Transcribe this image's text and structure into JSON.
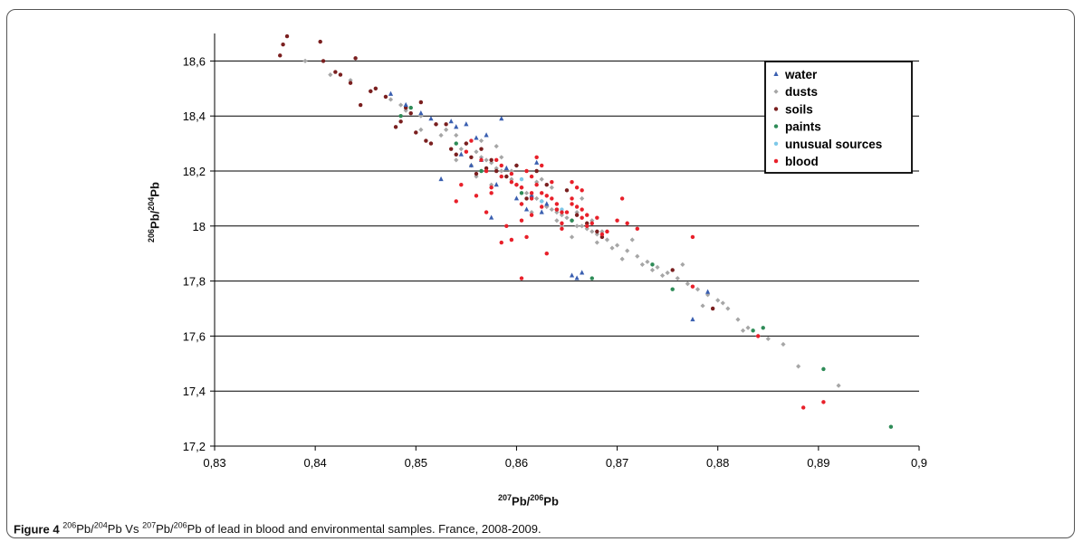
{
  "caption": {
    "figure_label": "Figure 4",
    "text_html": "<sup>206</sup>Pb/<sup>204</sup>Pb Vs <sup>207</sup>Pb/<sup>206</sup>Pb of lead in blood and environmental samples. France, 2008-2009."
  },
  "chart_data": {
    "type": "scatter",
    "xlabel_html": "<sup>207</sup>Pb/<sup>206</sup>Pb",
    "ylabel_html": "<sup>206</sup>Pb/<sup>204</sup>Pb",
    "xlim": [
      0.83,
      0.9
    ],
    "ylim": [
      17.2,
      18.7
    ],
    "x_ticks": [
      0.83,
      0.84,
      0.85,
      0.86,
      0.87,
      0.88,
      0.89,
      0.9
    ],
    "x_tick_labels": [
      "0,83",
      "0,84",
      "0,85",
      "0,86",
      "0,87",
      "0,88",
      "0,89",
      "0,9"
    ],
    "y_ticks": [
      17.2,
      17.4,
      17.6,
      17.8,
      18.0,
      18.2,
      18.4,
      18.6
    ],
    "y_tick_labels": [
      "17,2",
      "17,4",
      "17,6",
      "17,8",
      "18",
      "18,2",
      "18,4",
      "18,6"
    ],
    "grid": "horizontal",
    "legend_position": "top-right",
    "series": [
      {
        "name": "water",
        "marker": "triangle",
        "color": "#3a5fb0",
        "x": [
          0.8475,
          0.849,
          0.8505,
          0.8515,
          0.8525,
          0.8535,
          0.854,
          0.8545,
          0.855,
          0.8555,
          0.856,
          0.8565,
          0.857,
          0.8575,
          0.858,
          0.8585,
          0.859,
          0.86,
          0.861,
          0.8615,
          0.862,
          0.8625,
          0.863,
          0.8655,
          0.866,
          0.8665,
          0.8775,
          0.879
        ],
        "y": [
          18.48,
          18.44,
          18.41,
          18.39,
          18.17,
          18.38,
          18.36,
          18.26,
          18.37,
          18.22,
          18.32,
          18.24,
          18.33,
          18.03,
          18.15,
          18.39,
          18.21,
          18.1,
          18.06,
          18.11,
          18.23,
          18.05,
          18.08,
          17.82,
          17.81,
          17.83,
          17.66,
          17.76
        ]
      },
      {
        "name": "dusts",
        "marker": "diamond",
        "color": "#a6a6a6",
        "x": [
          0.839,
          0.8415,
          0.8435,
          0.8455,
          0.8475,
          0.849,
          0.8505,
          0.852,
          0.853,
          0.854,
          0.855,
          0.856,
          0.8565,
          0.857,
          0.8575,
          0.858,
          0.8585,
          0.859,
          0.8595,
          0.86,
          0.8605,
          0.861,
          0.8615,
          0.862,
          0.8625,
          0.863,
          0.8635,
          0.864,
          0.8645,
          0.865,
          0.8655,
          0.866,
          0.8665,
          0.867,
          0.8675,
          0.868,
          0.869,
          0.87,
          0.871,
          0.872,
          0.873,
          0.874,
          0.875,
          0.876,
          0.877,
          0.878,
          0.879,
          0.88,
          0.881,
          0.882,
          0.883,
          0.884,
          0.885,
          0.8865,
          0.888,
          0.892,
          0.8555,
          0.8575,
          0.8595,
          0.8615,
          0.8635,
          0.8655,
          0.8675,
          0.8695,
          0.8715,
          0.8735,
          0.8565,
          0.8585,
          0.8605,
          0.8625,
          0.8645,
          0.8665,
          0.8685,
          0.8545,
          0.8525,
          0.8505,
          0.8485,
          0.8705,
          0.8725,
          0.8745,
          0.8765,
          0.8785,
          0.8805,
          0.8825,
          0.862,
          0.864,
          0.866,
          0.868,
          0.86,
          0.858,
          0.856,
          0.854
        ],
        "y": [
          18.6,
          18.55,
          18.53,
          18.49,
          18.46,
          18.42,
          18.4,
          18.37,
          18.35,
          18.33,
          18.3,
          18.27,
          18.25,
          18.24,
          18.23,
          18.21,
          18.2,
          18.18,
          18.17,
          18.15,
          18.14,
          18.12,
          18.11,
          18.1,
          18.09,
          18.07,
          18.06,
          18.05,
          18.04,
          18.03,
          18.02,
          18.0,
          18.0,
          17.99,
          17.98,
          17.97,
          17.95,
          17.93,
          17.91,
          17.89,
          17.87,
          17.85,
          17.83,
          17.81,
          17.79,
          17.77,
          17.75,
          17.73,
          17.7,
          17.66,
          17.63,
          17.6,
          17.59,
          17.57,
          17.49,
          17.42,
          18.22,
          18.15,
          18.2,
          18.05,
          18.14,
          17.96,
          18.02,
          17.92,
          17.95,
          17.84,
          18.31,
          18.25,
          18.08,
          18.17,
          18.0,
          18.1,
          17.98,
          18.28,
          18.33,
          18.35,
          18.44,
          17.88,
          17.86,
          17.82,
          17.86,
          17.71,
          17.72,
          17.62,
          18.16,
          18.02,
          18.05,
          17.94,
          18.22,
          18.29,
          18.18,
          18.24
        ]
      },
      {
        "name": "soils",
        "marker": "dot",
        "color": "#7a1f1f",
        "x": [
          0.8365,
          0.8368,
          0.8372,
          0.8405,
          0.8408,
          0.842,
          0.8425,
          0.8435,
          0.844,
          0.8445,
          0.8455,
          0.846,
          0.847,
          0.848,
          0.8485,
          0.849,
          0.8495,
          0.85,
          0.8505,
          0.851,
          0.8515,
          0.852,
          0.853,
          0.8535,
          0.854,
          0.855,
          0.8555,
          0.856,
          0.8565,
          0.857,
          0.8575,
          0.858,
          0.859,
          0.86,
          0.861,
          0.862,
          0.863,
          0.864,
          0.865,
          0.866,
          0.867,
          0.868,
          0.8685,
          0.8755,
          0.8795
        ],
        "y": [
          18.62,
          18.66,
          18.69,
          18.67,
          18.6,
          18.56,
          18.55,
          18.52,
          18.61,
          18.44,
          18.49,
          18.5,
          18.47,
          18.36,
          18.38,
          18.43,
          18.41,
          18.34,
          18.45,
          18.31,
          18.3,
          18.37,
          18.37,
          18.28,
          18.26,
          18.3,
          18.25,
          18.19,
          18.28,
          18.21,
          18.24,
          18.2,
          18.18,
          18.22,
          18.1,
          18.2,
          18.15,
          18.06,
          18.13,
          18.04,
          18.01,
          17.98,
          17.96,
          17.84,
          17.7
        ]
      },
      {
        "name": "paints",
        "marker": "dot",
        "color": "#2e8b57",
        "x": [
          0.8485,
          0.8495,
          0.854,
          0.8565,
          0.8605,
          0.8655,
          0.8675,
          0.8735,
          0.8755,
          0.8835,
          0.8845,
          0.8905,
          0.8972
        ],
        "y": [
          18.4,
          18.43,
          18.3,
          18.2,
          18.12,
          18.02,
          17.81,
          17.86,
          17.77,
          17.62,
          17.63,
          17.48,
          17.27
        ]
      },
      {
        "name": "unusual sources",
        "marker": "dot",
        "color": "#7ec8e8",
        "x": [
          0.8605,
          0.8625,
          0.8645
        ],
        "y": [
          18.17,
          18.09,
          18.06
        ]
      },
      {
        "name": "blood",
        "marker": "dot",
        "color": "#e8202a",
        "x": [
          0.854,
          0.8545,
          0.855,
          0.8555,
          0.856,
          0.8565,
          0.857,
          0.8575,
          0.858,
          0.8585,
          0.859,
          0.8595,
          0.86,
          0.8605,
          0.861,
          0.8615,
          0.862,
          0.8625,
          0.863,
          0.8635,
          0.864,
          0.8645,
          0.865,
          0.8655,
          0.866,
          0.8665,
          0.867,
          0.868,
          0.869,
          0.87,
          0.8705,
          0.871,
          0.872,
          0.857,
          0.8575,
          0.8585,
          0.8595,
          0.8605,
          0.8615,
          0.8625,
          0.8635,
          0.8645,
          0.8655,
          0.8665,
          0.8605,
          0.861,
          0.8615,
          0.862,
          0.8625,
          0.8585,
          0.8595,
          0.8605,
          0.8615,
          0.863,
          0.864,
          0.8645,
          0.8655,
          0.866,
          0.8665,
          0.867,
          0.8675,
          0.8685,
          0.8775,
          0.8775,
          0.884,
          0.8885,
          0.8905
        ],
        "y": [
          18.09,
          18.15,
          18.27,
          18.31,
          18.11,
          18.24,
          18.2,
          18.14,
          18.24,
          18.18,
          18.0,
          18.19,
          18.15,
          18.08,
          18.2,
          18.1,
          18.25,
          18.12,
          17.9,
          18.1,
          18.06,
          17.99,
          18.05,
          18.08,
          18.14,
          18.06,
          18.0,
          18.03,
          17.98,
          18.02,
          18.1,
          18.01,
          17.99,
          18.05,
          18.12,
          17.94,
          17.95,
          18.02,
          18.04,
          18.07,
          18.16,
          18.01,
          18.16,
          18.13,
          17.81,
          17.96,
          18.12,
          18.15,
          18.22,
          18.22,
          18.16,
          18.14,
          18.18,
          18.11,
          18.08,
          18.05,
          18.1,
          18.07,
          18.03,
          18.04,
          18.01,
          17.97,
          17.96,
          17.78,
          17.6,
          17.34,
          17.36
        ]
      }
    ]
  }
}
